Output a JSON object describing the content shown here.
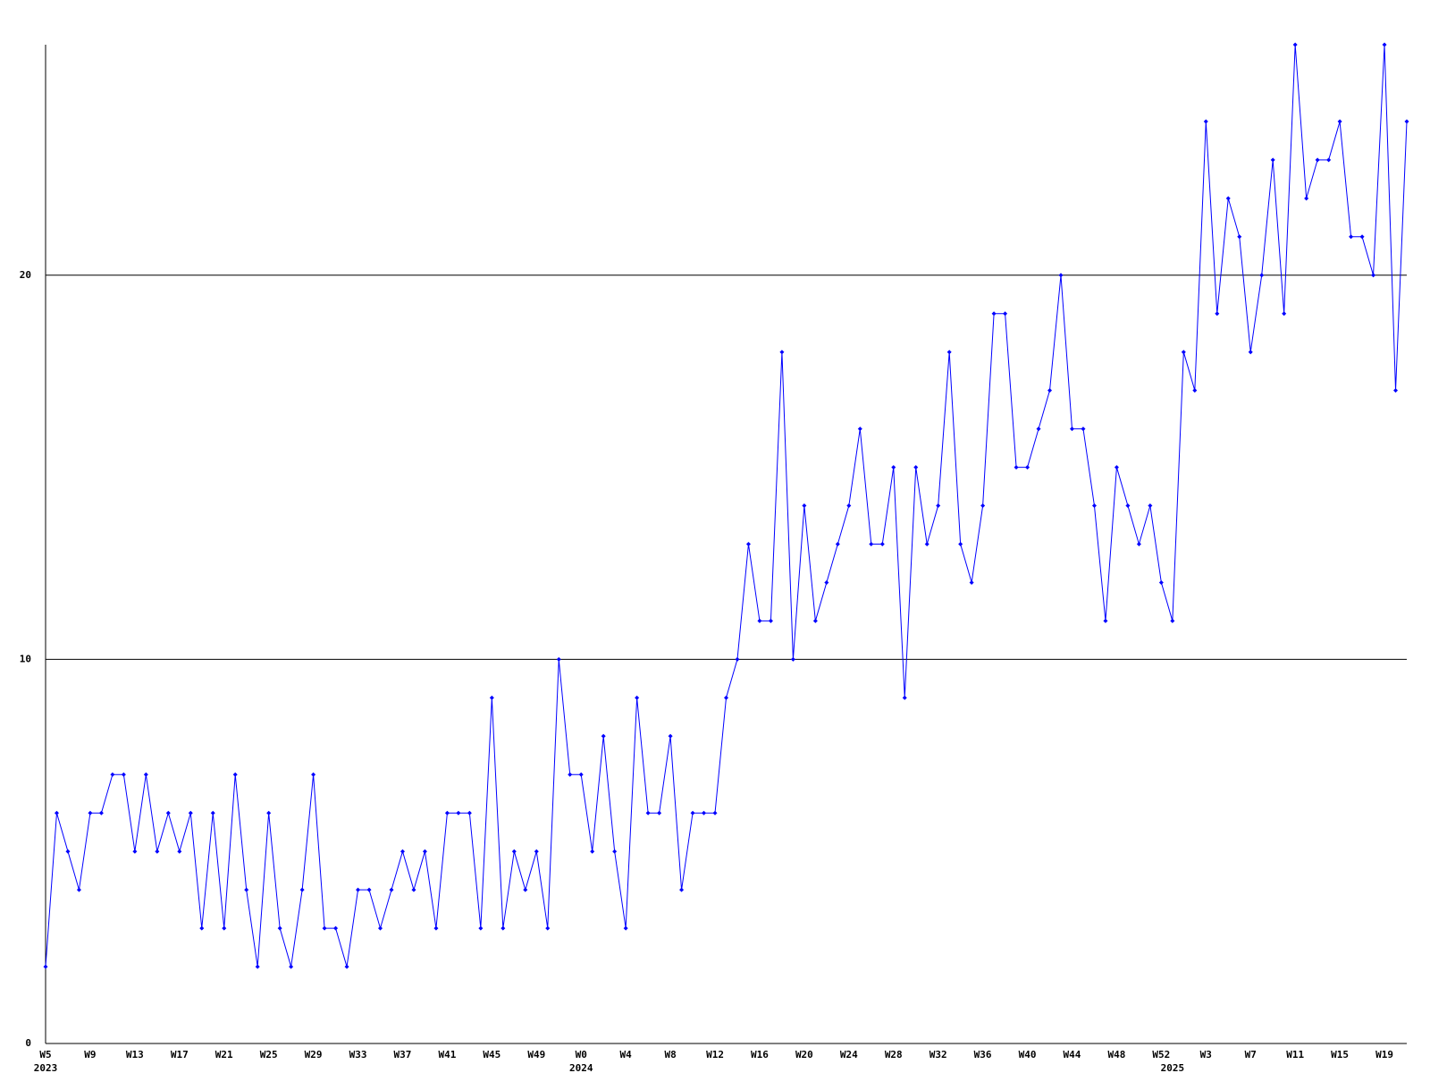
{
  "chart_data": {
    "type": "line",
    "categories": [
      "W5",
      null,
      null,
      null,
      "W9",
      null,
      null,
      null,
      "W13",
      null,
      null,
      null,
      "W17",
      null,
      null,
      null,
      "W21",
      null,
      null,
      null,
      "W25",
      null,
      null,
      null,
      "W29",
      null,
      null,
      null,
      "W33",
      null,
      null,
      null,
      "W37",
      null,
      null,
      null,
      "W41",
      null,
      null,
      null,
      "W45",
      null,
      null,
      null,
      "W49",
      null,
      null,
      null,
      "W0",
      null,
      null,
      null,
      "W4",
      null,
      null,
      null,
      "W8",
      null,
      null,
      null,
      "W12",
      null,
      null,
      null,
      "W16",
      null,
      null,
      null,
      "W20",
      null,
      null,
      null,
      "W24",
      null,
      null,
      null,
      "W28",
      null,
      null,
      null,
      "W32",
      null,
      null,
      null,
      "W36",
      null,
      null,
      null,
      "W40",
      null,
      null,
      null,
      "W44",
      null,
      null,
      null,
      "W48",
      null,
      null,
      null,
      "W52",
      null,
      null,
      null,
      "W3",
      null,
      null,
      null,
      "W7",
      null,
      null,
      null,
      "W11",
      null,
      null,
      null,
      "W15",
      null,
      null,
      null,
      "W19",
      null,
      null
    ],
    "year_labels": [
      "2023",
      null,
      null,
      null,
      null,
      null,
      null,
      null,
      null,
      null,
      null,
      null,
      null,
      null,
      null,
      null,
      null,
      null,
      null,
      null,
      null,
      null,
      null,
      null,
      null,
      null,
      null,
      null,
      null,
      null,
      null,
      null,
      null,
      null,
      null,
      null,
      null,
      null,
      null,
      null,
      null,
      null,
      null,
      null,
      null,
      null,
      null,
      null,
      "2024",
      null,
      null,
      null,
      null,
      null,
      null,
      null,
      null,
      null,
      null,
      null,
      null,
      null,
      null,
      null,
      null,
      null,
      null,
      null,
      null,
      null,
      null,
      null,
      null,
      null,
      null,
      null,
      null,
      null,
      null,
      null,
      null,
      null,
      null,
      null,
      null,
      null,
      null,
      null,
      null,
      null,
      null,
      null,
      null,
      null,
      null,
      null,
      null,
      null,
      null,
      null,
      null,
      "2025",
      null,
      null,
      null,
      null,
      null,
      null,
      null,
      null,
      null,
      null,
      null,
      null,
      null,
      null,
      null,
      null,
      null,
      null,
      null,
      null
    ],
    "series": [
      {
        "color": "#0000ff",
        "values": [
          2,
          6,
          5,
          4,
          6,
          6,
          7,
          7,
          5,
          7,
          5,
          6,
          5,
          6,
          3,
          6,
          3,
          7,
          4,
          2,
          6,
          3,
          2,
          4,
          7,
          3,
          3,
          2,
          4,
          4,
          3,
          4,
          5,
          4,
          5,
          3,
          6,
          6,
          6,
          3,
          9,
          3,
          5,
          4,
          5,
          3,
          10,
          7,
          7,
          5,
          8,
          5,
          3,
          9,
          6,
          6,
          8,
          4,
          6,
          6,
          6,
          9,
          10,
          13,
          11,
          11,
          18,
          10,
          14,
          11,
          12,
          13,
          14,
          16,
          13,
          13,
          15,
          9,
          15,
          13,
          14,
          18,
          13,
          12,
          14,
          19,
          19,
          15,
          15,
          16,
          17,
          20,
          16,
          16,
          14,
          11,
          15,
          14,
          13,
          14,
          12,
          11,
          18,
          17,
          24,
          19,
          22,
          21,
          18,
          20,
          23,
          19,
          26,
          22,
          23,
          23,
          24,
          21,
          21,
          20,
          26,
          17,
          24
        ]
      }
    ],
    "ylim": [
      0,
      26
    ],
    "yticks": [
      0,
      10,
      20
    ],
    "grid": true
  }
}
